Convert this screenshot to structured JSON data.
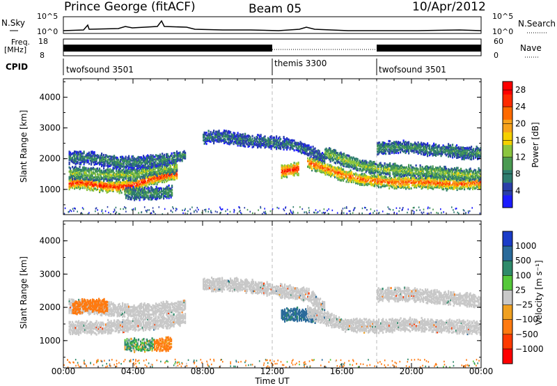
{
  "header": {
    "station": "Prince George (fitACF)",
    "beam": "Beam 05",
    "date": "10/Apr/2012"
  },
  "panels": {
    "nsky_label": "N.Sky",
    "nsky_ticks": [
      "10^5",
      "10^0"
    ],
    "nsearch_label": "N.Search",
    "nsearch_ticks": [
      "10^5",
      "10^0"
    ],
    "freq_label": "Freq.",
    "freq_unit": "[MHz]",
    "freq_ticks": [
      "18",
      "8"
    ],
    "nave_label": "Nave",
    "nave_ticks": [
      "60",
      "0"
    ],
    "cpid_label": "CPID",
    "cpid_segments": [
      {
        "name": "twofsound 3501",
        "start": 0,
        "end": 12
      },
      {
        "name": "themis 3300",
        "start": 12,
        "end": 18
      },
      {
        "name": "twofsound 3501",
        "start": 18,
        "end": 24
      }
    ]
  },
  "axes": {
    "ylabel": "Slant Range [km]",
    "xlabel": "Time UT",
    "xticks": [
      "00:00",
      "04:00",
      "08:00",
      "12:00",
      "16:00",
      "20:00",
      "00:00"
    ],
    "yticks": [
      "1000",
      "2000",
      "3000",
      "4000"
    ]
  },
  "colorbars": {
    "power": {
      "label": "Power [dB]",
      "ticks": [
        "4",
        "8",
        "12",
        "16",
        "20",
        "24",
        "28"
      ],
      "colors": [
        "#1c1cff",
        "#2a3fa8",
        "#2e7c6e",
        "#4a9a52",
        "#8bc53f",
        "#f5d000",
        "#f7a21b",
        "#ff6a00",
        "#ff2a00",
        "#ff0000"
      ]
    },
    "velocity": {
      "label": "Velocity [m s⁻¹]",
      "ticks": [
        "1000",
        "500",
        "100",
        "25",
        "−25",
        "−100",
        "−500",
        "−1000"
      ],
      "colors": [
        "#1a3cc8",
        "#2a6a9a",
        "#2e8a6a",
        "#55c83a",
        "#c8c8c8",
        "#f0a020",
        "#ff7a10",
        "#ff3a00",
        "#ff0000"
      ]
    }
  },
  "chart_data": [
    {
      "type": "heatmap",
      "title": "Power",
      "xlabel": "Time UT",
      "ylabel": "Slant Range [km]",
      "xlim": [
        0,
        24
      ],
      "ylim": [
        180,
        4600
      ],
      "colorbar_range": [
        0,
        30
      ],
      "bands": [
        {
          "t": [
            0.3,
            1,
            2,
            3,
            4,
            5,
            6.5
          ],
          "range": [
            1200,
            1250,
            1150,
            1100,
            1150,
            1350,
            1550
          ],
          "value": 27
        },
        {
          "t": [
            0.3,
            1,
            2,
            3,
            4,
            5,
            6.5
          ],
          "range": [
            1550,
            1550,
            1500,
            1500,
            1500,
            1650,
            1750
          ],
          "value": 14
        },
        {
          "t": [
            0.3,
            1.5,
            3,
            4.5,
            6,
            7
          ],
          "range": [
            2050,
            2050,
            1900,
            1900,
            2000,
            2150
          ],
          "value": 9
        },
        {
          "t": [
            3.5,
            4.5,
            5.5,
            6.2
          ],
          "range": [
            900,
            880,
            900,
            950
          ],
          "value": 10
        },
        {
          "t": [
            8,
            9,
            10,
            11,
            12,
            13,
            14,
            15
          ],
          "range": [
            2700,
            2750,
            2650,
            2600,
            2550,
            2500,
            2300,
            2000
          ],
          "value": 8
        },
        {
          "t": [
            12.5,
            13,
            13.5
          ],
          "range": [
            1600,
            1650,
            1700
          ],
          "value": 28
        },
        {
          "t": [
            14,
            15,
            16,
            17,
            18,
            19,
            20,
            21,
            22,
            23,
            24
          ],
          "range": [
            1900,
            1700,
            1500,
            1350,
            1300,
            1250,
            1250,
            1250,
            1200,
            1200,
            1250
          ],
          "value": 24
        },
        {
          "t": [
            15,
            16,
            17,
            18,
            19,
            20,
            21,
            22,
            23,
            24
          ],
          "range": [
            2200,
            2000,
            1800,
            1700,
            1650,
            1600,
            1600,
            1550,
            1500,
            1500
          ],
          "value": 14
        },
        {
          "t": [
            18,
            19,
            20,
            21,
            22,
            23,
            24
          ],
          "range": [
            2350,
            2400,
            2400,
            2300,
            2300,
            2200,
            2200
          ],
          "value": 10
        }
      ]
    },
    {
      "type": "heatmap",
      "title": "Velocity",
      "xlabel": "Time UT",
      "ylabel": "Slant Range [km]",
      "xlim": [
        0,
        24
      ],
      "ylim": [
        180,
        4600
      ],
      "colorbar_range": [
        -1000,
        1000
      ],
      "bands": [
        {
          "t": [
            0.3,
            2,
            4,
            6,
            7
          ],
          "range": [
            1400,
            1400,
            1500,
            1600,
            1700
          ],
          "value": 0
        },
        {
          "t": [
            0.3,
            2,
            4,
            6,
            7
          ],
          "range": [
            2050,
            2000,
            1900,
            2000,
            2100
          ],
          "value": 0
        },
        {
          "t": [
            0.5,
            1.5,
            2.5
          ],
          "range": [
            2000,
            2100,
            2050
          ],
          "value": -300
        },
        {
          "t": [
            3.5,
            4.5,
            5.2
          ],
          "range": [
            900,
            880,
            900
          ],
          "value": 100
        },
        {
          "t": [
            5.2,
            5.8,
            6.2
          ],
          "range": [
            900,
            900,
            950
          ],
          "value": -200
        },
        {
          "t": [
            8,
            10,
            12,
            14,
            15
          ],
          "range": [
            2700,
            2700,
            2550,
            2400,
            2000
          ],
          "value": 0
        },
        {
          "t": [
            12.5,
            13.5,
            14.5
          ],
          "range": [
            1800,
            1800,
            1750
          ],
          "value": 600
        },
        {
          "t": [
            14,
            16,
            18,
            20,
            22,
            24
          ],
          "range": [
            1900,
            1500,
            1450,
            1500,
            1450,
            1400
          ],
          "value": 0
        },
        {
          "t": [
            18,
            20,
            22,
            24
          ],
          "range": [
            2400,
            2400,
            2300,
            2200
          ],
          "value": 0
        }
      ]
    }
  ]
}
